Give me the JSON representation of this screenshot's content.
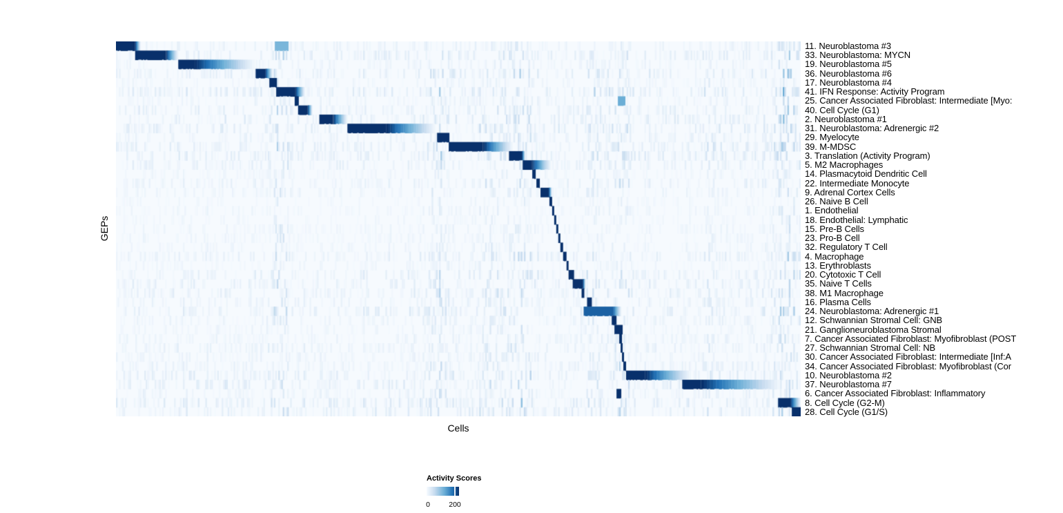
{
  "axes": {
    "x_label": "Cells",
    "y_label": "GEPs"
  },
  "legend": {
    "title": "Activity Scores",
    "min": "0",
    "max": "200"
  },
  "chart_data": {
    "type": "heatmap",
    "xlabel": "Cells",
    "ylabel": "GEPs",
    "value_domain": [
      0,
      200
    ],
    "legend_title": "Activity Scores",
    "grid": false,
    "legend_position": "bottom-left",
    "colors": {
      "stops": [
        "#f7fbff",
        "#c6dbef",
        "#6baed6",
        "#2171b5",
        "#08306b"
      ],
      "stop_positions": [
        0,
        0.25,
        0.55,
        0.8,
        1
      ],
      "background": "#f6fafe"
    },
    "column_bands": [
      [
        0.24,
        0.008,
        0.55
      ],
      [
        0.472,
        0.01,
        0.4
      ],
      [
        0.545,
        0.012,
        0.32
      ],
      [
        0.592,
        0.014,
        0.5
      ],
      [
        0.7,
        0.01,
        0.3
      ],
      [
        0.738,
        0.008,
        0.5
      ],
      [
        0.865,
        0.006,
        0.25
      ],
      [
        0.978,
        0.012,
        0.75
      ]
    ],
    "rows": [
      {
        "label": "11. Neuroblastoma #3",
        "block": [
          0.0,
          0.028
        ],
        "fade": 0.036,
        "intensity": 1,
        "stripe": 0.35,
        "extras": [
          [
            0.232,
            0.252,
            0.5
          ]
        ]
      },
      {
        "label": "33. Neuroblastoma: MYCN",
        "block": [
          0.028,
          0.073
        ],
        "fade": 0.091,
        "intensity": 1,
        "stripe": 0.5,
        "extras": []
      },
      {
        "label": "19. Neuroblastoma #5",
        "block": [
          0.091,
          0.115
        ],
        "fade": 0.202,
        "intensity": 1,
        "stripe": 0.3,
        "extras": []
      },
      {
        "label": "36. Neuroblastoma #6",
        "block": [
          0.204,
          0.218
        ],
        "fade": 0.229,
        "intensity": 1,
        "stripe": 0.55,
        "extras": []
      },
      {
        "label": "17. Neuroblastoma #4",
        "block": [
          0.224,
          0.235
        ],
        "fade": 0,
        "intensity": 1,
        "stripe": 0.25,
        "extras": []
      },
      {
        "label": "41. IFN Response: Activity Program",
        "block": [
          0.234,
          0.262
        ],
        "fade": 0.276,
        "intensity": 1,
        "stripe": 0.6,
        "extras": []
      },
      {
        "label": "25. Cancer Associated Fibroblast: Intermediate [Myo:",
        "block": [
          0.261,
          0.267
        ],
        "fade": 0,
        "intensity": 1,
        "stripe": 0.3,
        "extras": [
          [
            0.733,
            0.744,
            0.55
          ]
        ]
      },
      {
        "label": "40. Cell Cycle (G1)",
        "block": [
          0.266,
          0.28
        ],
        "fade": 0.287,
        "intensity": 1,
        "stripe": 0.5,
        "extras": []
      },
      {
        "label": "2. Neuroblastoma #1",
        "block": [
          0.297,
          0.317
        ],
        "fade": 0.338,
        "intensity": 1,
        "stripe": 0.55,
        "extras": []
      },
      {
        "label": "31. Neuroblastoma: Adrenergic #2",
        "block": [
          0.338,
          0.395
        ],
        "fade": 0.466,
        "intensity": 1,
        "stripe": 0.6,
        "extras": []
      },
      {
        "label": "29. Myelocyte",
        "block": [
          0.469,
          0.487
        ],
        "fade": 0,
        "intensity": 1,
        "stripe": 0.35,
        "extras": []
      },
      {
        "label": "39. M-MDSC",
        "block": [
          0.486,
          0.536
        ],
        "fade": 0.579,
        "intensity": 1,
        "stripe": 0.55,
        "extras": []
      },
      {
        "label": "3. Translation (Activity Program)",
        "block": [
          0.574,
          0.593
        ],
        "fade": 0.598,
        "intensity": 1,
        "stripe": 0.6,
        "extras": []
      },
      {
        "label": "5. M2 Macrophages",
        "block": [
          0.594,
          0.607
        ],
        "fade": 0.635,
        "intensity": 1,
        "stripe": 0.45,
        "extras": []
      },
      {
        "label": "14. Plasmacytoid Dendritic Cell",
        "block": [
          0.608,
          0.613
        ],
        "fade": 0,
        "intensity": 1,
        "stripe": 0.25,
        "extras": []
      },
      {
        "label": "22. Intermediate Monocyte",
        "block": [
          0.614,
          0.619
        ],
        "fade": 0,
        "intensity": 1,
        "stripe": 0.4,
        "extras": []
      },
      {
        "label": "9. Adrenal Cortex Cells",
        "block": [
          0.62,
          0.632
        ],
        "fade": 0.637,
        "intensity": 1,
        "stripe": 0.3,
        "extras": []
      },
      {
        "label": "26. Naive B Cell",
        "block": [
          0.633,
          0.637
        ],
        "fade": 0,
        "intensity": 1,
        "stripe": 0.2,
        "extras": []
      },
      {
        "label": "1. Endothelial",
        "block": [
          0.637,
          0.64
        ],
        "fade": 0,
        "intensity": 1,
        "stripe": 0.25,
        "extras": []
      },
      {
        "label": "18. Endothelial: Lymphatic",
        "block": [
          0.64,
          0.643
        ],
        "fade": 0,
        "intensity": 1,
        "stripe": 0.2,
        "extras": []
      },
      {
        "label": "15. Pre-B Cells",
        "block": [
          0.643,
          0.646
        ],
        "fade": 0,
        "intensity": 1,
        "stripe": 0.25,
        "extras": []
      },
      {
        "label": "23. Pro-B Cell",
        "block": [
          0.646,
          0.649
        ],
        "fade": 0,
        "intensity": 1,
        "stripe": 0.25,
        "extras": []
      },
      {
        "label": "32. Regulatory T Cell",
        "block": [
          0.649,
          0.653
        ],
        "fade": 0,
        "intensity": 1,
        "stripe": 0.3,
        "extras": []
      },
      {
        "label": "4. Macrophage",
        "block": [
          0.653,
          0.658
        ],
        "fade": 0,
        "intensity": 1,
        "stripe": 0.45,
        "extras": []
      },
      {
        "label": "13. Erythroblasts",
        "block": [
          0.658,
          0.661
        ],
        "fade": 0,
        "intensity": 1,
        "stripe": 0.25,
        "extras": []
      },
      {
        "label": "20. Cytotoxic T Cell",
        "block": [
          0.661,
          0.669
        ],
        "fade": 0,
        "intensity": 1,
        "stripe": 0.5,
        "extras": []
      },
      {
        "label": "35. Naive T Cells",
        "block": [
          0.667,
          0.682
        ],
        "fade": 0.686,
        "intensity": 1,
        "stripe": 0.45,
        "extras": []
      },
      {
        "label": "38. M1 Macrophage",
        "block": [
          0.68,
          0.684
        ],
        "fade": 0,
        "intensity": 1,
        "stripe": 0.5,
        "extras": []
      },
      {
        "label": "16. Plasma Cells",
        "block": [
          0.688,
          0.695
        ],
        "fade": 0,
        "intensity": 1,
        "stripe": 0.35,
        "extras": []
      },
      {
        "label": "24. Neuroblastoma: Adrenergic #1",
        "block": [
          0.683,
          0.726
        ],
        "fade": 0.738,
        "intensity": 0.85,
        "stripe": 0.6,
        "extras": []
      },
      {
        "label": "12. Schwannian Stromal Cell: GNB",
        "block": [
          0.724,
          0.731
        ],
        "fade": 0,
        "intensity": 1,
        "stripe": 0.35,
        "extras": []
      },
      {
        "label": "21. Ganglioneuroblastoma Stromal",
        "block": [
          0.728,
          0.74
        ],
        "fade": 0,
        "intensity": 1,
        "stripe": 0.3,
        "extras": []
      },
      {
        "label": "7. Cancer Associated Fibroblast: Myofibroblast (POST",
        "block": [
          0.735,
          0.739
        ],
        "fade": 0,
        "intensity": 1,
        "stripe": 0.35,
        "extras": []
      },
      {
        "label": "27. Schwannian Stromal Cell: NB",
        "block": [
          0.737,
          0.74
        ],
        "fade": 0,
        "intensity": 1,
        "stripe": 0.4,
        "extras": []
      },
      {
        "label": "30. Cancer Associated Fibroblast: Intermediate [Inf:A",
        "block": [
          0.739,
          0.742
        ],
        "fade": 0,
        "intensity": 1,
        "stripe": 0.35,
        "extras": []
      },
      {
        "label": "34. Cancer Associated Fibroblast: Myofibroblast (Cor",
        "block": [
          0.741,
          0.745
        ],
        "fade": 0,
        "intensity": 1,
        "stripe": 0.4,
        "extras": []
      },
      {
        "label": "10. Neuroblastoma #2",
        "block": [
          0.745,
          0.773
        ],
        "fade": 0.839,
        "intensity": 1,
        "stripe": 0.5,
        "extras": []
      },
      {
        "label": "37. Neuroblastoma #7",
        "block": [
          0.827,
          0.854
        ],
        "fade": 0.97,
        "intensity": 1,
        "stripe": 0.55,
        "extras": []
      },
      {
        "label": "6. Cancer Associated Fibroblast: Inflammatory",
        "block": [
          0.731,
          0.738
        ],
        "fade": 0,
        "intensity": 1,
        "stripe": 0.35,
        "extras": []
      },
      {
        "label": "8. Cell Cycle (G2-M)",
        "block": [
          0.967,
          0.985
        ],
        "fade": 1.0,
        "intensity": 1,
        "stripe": 0.6,
        "extras": []
      },
      {
        "label": "28. Cell Cycle (G1/S)",
        "block": [
          0.987,
          1.0
        ],
        "fade": 0,
        "intensity": 1,
        "stripe": 0.55,
        "extras": []
      }
    ]
  }
}
